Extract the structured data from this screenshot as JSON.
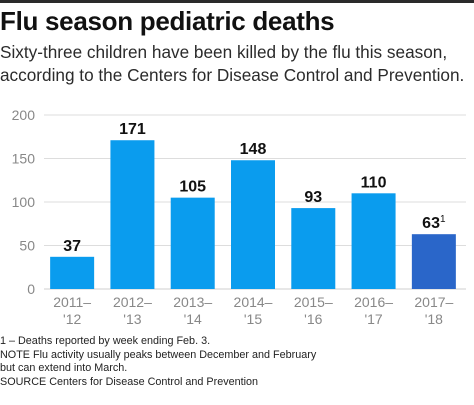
{
  "header": {
    "title": "Flu season pediatric deaths",
    "subtitle": "Sixty-three children have been killed by the flu this season, according to the Centers for Disease Control and Prevention."
  },
  "chart_data": {
    "type": "bar",
    "categories": [
      [
        "2011–",
        "'12"
      ],
      [
        "2012–",
        "'13"
      ],
      [
        "2013–",
        "'14"
      ],
      [
        "2014–",
        "'15"
      ],
      [
        "2015–",
        "'16"
      ],
      [
        "2016–",
        "'17"
      ],
      [
        "2017–",
        "'18"
      ]
    ],
    "values": [
      37,
      171,
      105,
      148,
      93,
      110,
      63
    ],
    "value_labels": [
      "37",
      "171",
      "105",
      "148",
      "93",
      "110",
      "63"
    ],
    "value_label_superscripts": [
      "",
      "",
      "",
      "",
      "",
      "",
      "1"
    ],
    "ylim": [
      0,
      200
    ],
    "yticks": [
      0,
      50,
      100,
      150,
      200
    ],
    "grid": true,
    "colors": {
      "bar": "#0a9cee",
      "highlight_bar": "#2a66c9",
      "grid": "#dddddd",
      "tick_label": "#888888",
      "value_label": "#111111"
    },
    "highlight_index": 6
  },
  "notes": {
    "footnote": "1 – Deaths reported by week ending Feb. 3.",
    "note_line1": "NOTE Flu activity usually peaks between December and February",
    "note_line2": "but can extend into March.",
    "source": "SOURCE  Centers for Disease Control and Prevention"
  }
}
